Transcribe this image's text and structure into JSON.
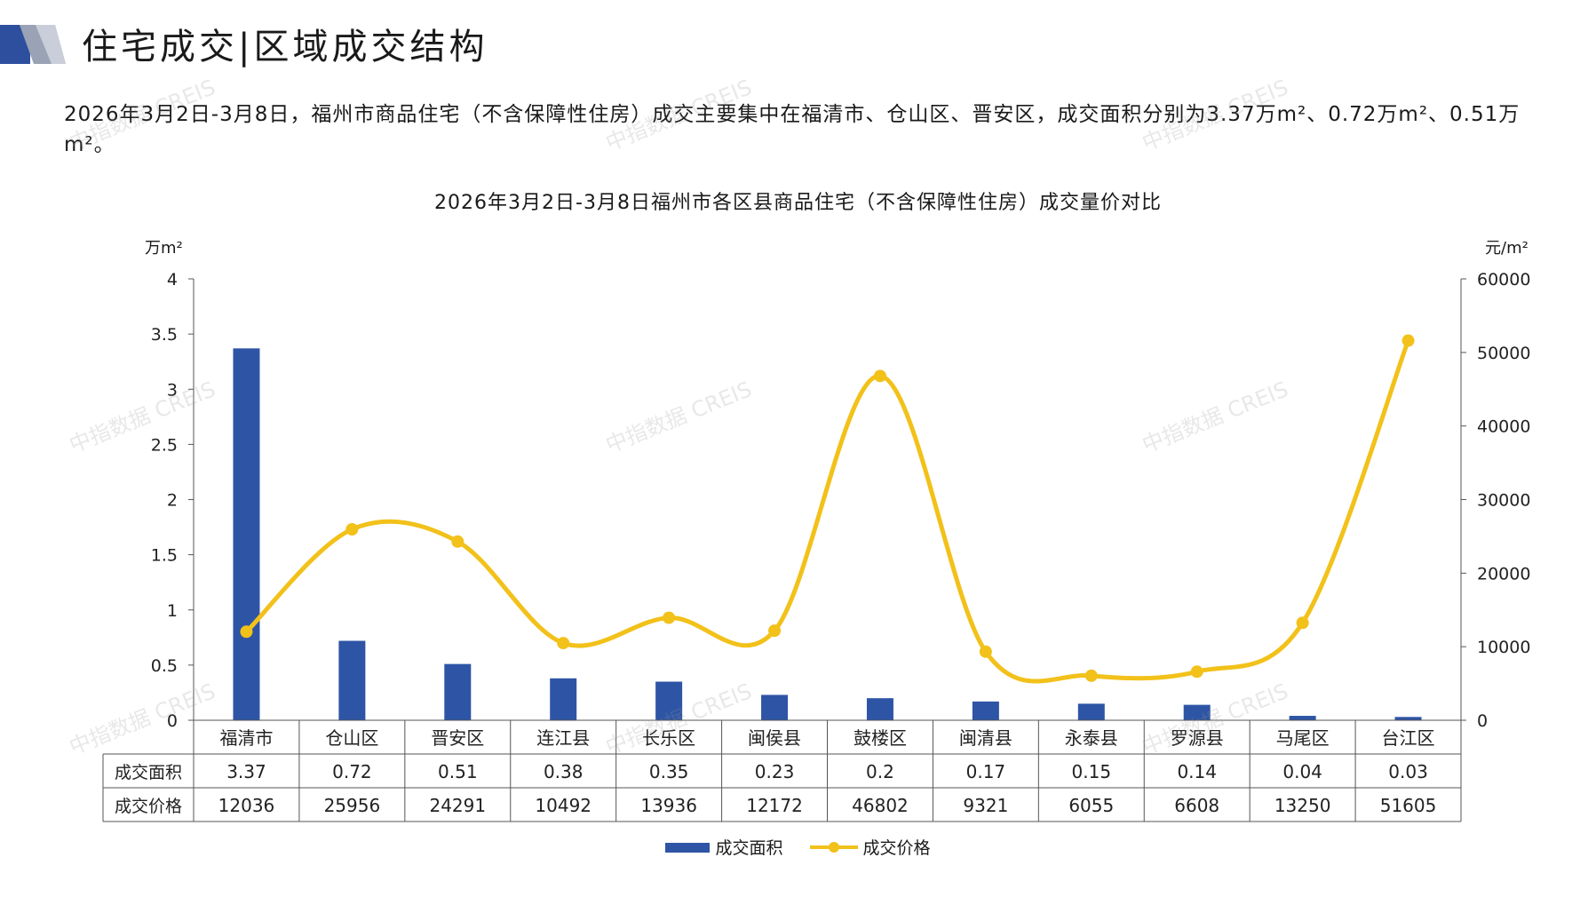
{
  "header": {
    "title": "住宅成交|区域成交结构",
    "summary": "2026年3月2日-3月8日，福州市商品住宅（不含保障性住房）成交主要集中在福清市、仓山区、晋安区，成交面积分别为3.37万m²、0.72万m²、0.51万m²。"
  },
  "watermark": "中指数据 CREIS",
  "colors": {
    "bar": "#2E55A5",
    "line": "#F2C11A",
    "deco_blue": "#2E4F9E",
    "deco_gray": "#9AA3B5"
  },
  "chart_data": {
    "type": "bar",
    "title": "2026年3月2日-3月8日福州市各区县商品住宅（不含保障性住房）成交量价对比",
    "y_left_unit": "万m²",
    "y_right_unit": "元/m²",
    "y_left_range": [
      0,
      4
    ],
    "y_left_ticks": [
      "0",
      "0.5",
      "1",
      "1.5",
      "2",
      "2.5",
      "3",
      "3.5",
      "4"
    ],
    "y_right_range": [
      0,
      60000
    ],
    "y_right_ticks": [
      "0",
      "10000",
      "20000",
      "30000",
      "40000",
      "50000",
      "60000"
    ],
    "categories": [
      "福清市",
      "仓山区",
      "晋安区",
      "连江县",
      "长乐区",
      "闽侯县",
      "鼓楼区",
      "闽清县",
      "永泰县",
      "罗源县",
      "马尾区",
      "台江区"
    ],
    "series": [
      {
        "name": "成交面积",
        "type": "bar",
        "axis": "left",
        "values": [
          3.37,
          0.72,
          0.51,
          0.38,
          0.35,
          0.23,
          0.2,
          0.17,
          0.15,
          0.14,
          0.04,
          0.03
        ],
        "labels": [
          "3.37",
          "0.72",
          "0.51",
          "0.38",
          "0.35",
          "0.23",
          "0.2",
          "0.17",
          "0.15",
          "0.14",
          "0.04",
          "0.03"
        ]
      },
      {
        "name": "成交价格",
        "type": "line",
        "axis": "right",
        "values": [
          12036,
          25956,
          24291,
          10492,
          13936,
          12172,
          46802,
          9321,
          6055,
          6608,
          13250,
          51605
        ],
        "labels": [
          "12036",
          "25956",
          "24291",
          "10492",
          "13936",
          "12172",
          "46802",
          "9321",
          "6055",
          "6608",
          "13250",
          "51605"
        ]
      }
    ],
    "legend": "bottom"
  }
}
